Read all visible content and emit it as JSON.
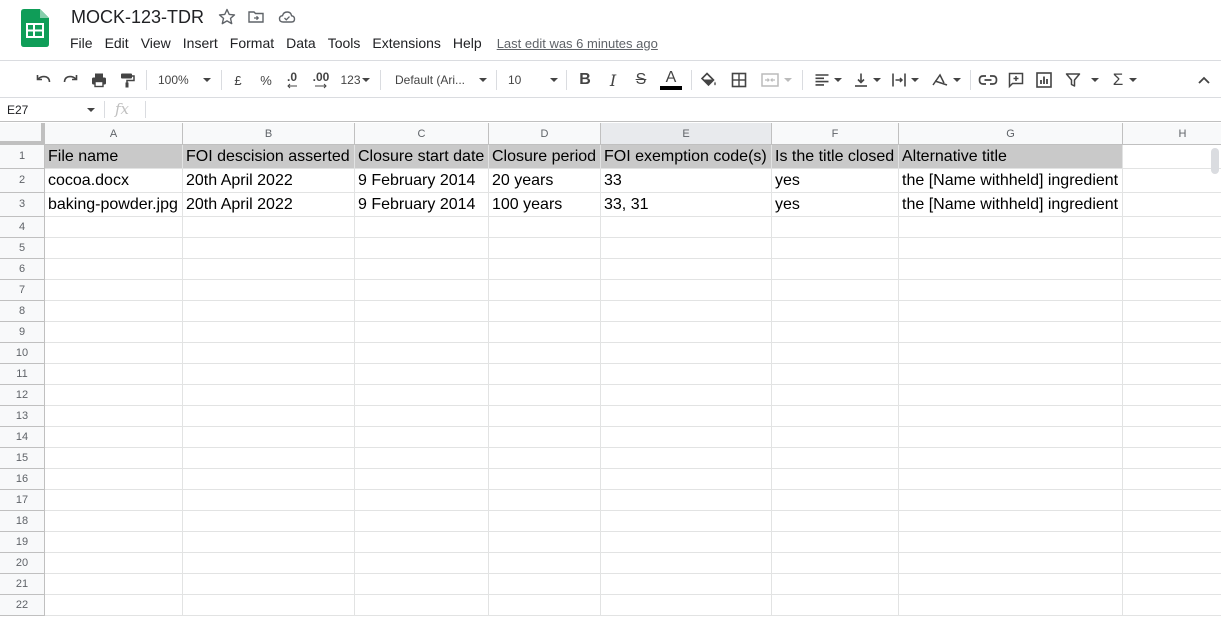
{
  "app": {
    "title": "MOCK-123-TDR",
    "last_edit": "Last edit was 6 minutes ago",
    "colors": {
      "logo": "#0f9d58",
      "selected_header": "#e8eaed",
      "header_fill": "#c9c9c9"
    }
  },
  "menu": [
    "File",
    "Edit",
    "View",
    "Insert",
    "Format",
    "Data",
    "Tools",
    "Extensions",
    "Help"
  ],
  "toolbar": {
    "zoom": "100%",
    "currency": "£",
    "percent": "%",
    "decrease_decimal": ".0",
    "increase_decimal": ".00",
    "more_formats": "123",
    "font": "Default (Ari...",
    "font_size": "10",
    "bold": "B",
    "italic": "I",
    "strike": "S",
    "text_color": "A",
    "sum": "Σ"
  },
  "formula_bar": {
    "name_box": "E27",
    "fx": "fx",
    "value": ""
  },
  "grid": {
    "columns": [
      "A",
      "B",
      "C",
      "D",
      "E",
      "F",
      "G",
      "H"
    ],
    "selected_column": "E",
    "rows": [
      "1",
      "2",
      "3",
      "4",
      "5",
      "6",
      "7",
      "8",
      "9",
      "10",
      "11",
      "12",
      "13",
      "14",
      "15",
      "16",
      "17",
      "18",
      "19",
      "20",
      "21",
      "22"
    ],
    "cells": [
      [
        "File name",
        "FOI descision asserted",
        "Closure start date",
        "Closure period",
        "FOI exemption code(s)",
        "Is the title closed",
        "Alternative title",
        ""
      ],
      [
        "cocoa.docx",
        "20th April 2022",
        "9 February 2014",
        "20 years",
        "33",
        "yes",
        "the [Name withheld] ingredient",
        ""
      ],
      [
        "baking-powder.jpg",
        "20th April 2022",
        "9 February 2014",
        "100 years",
        "33, 31",
        "yes",
        "the [Name withheld] ingredient",
        ""
      ]
    ]
  }
}
